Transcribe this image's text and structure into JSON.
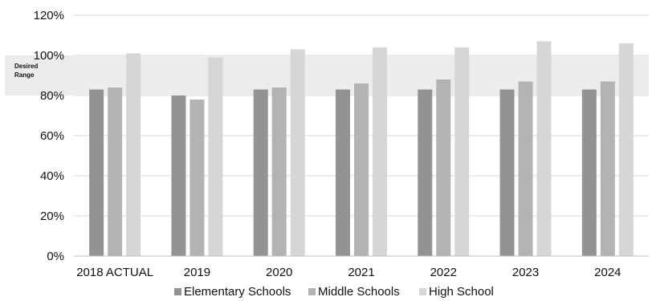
{
  "chart_data": {
    "type": "bar",
    "categories": [
      "2018 ACTUAL",
      "2019",
      "2020",
      "2021",
      "2022",
      "2023",
      "2024"
    ],
    "series": [
      {
        "name": "Elementary Schools",
        "values": [
          83,
          80,
          83,
          83,
          83,
          83,
          83
        ],
        "color": "#939393"
      },
      {
        "name": "Middle Schools",
        "values": [
          84,
          78,
          84,
          86,
          88,
          87,
          87
        ],
        "color": "#b3b3b3"
      },
      {
        "name": "High School",
        "values": [
          101,
          99,
          103,
          104,
          104,
          107,
          106
        ],
        "color": "#d6d6d6"
      }
    ],
    "ylim": [
      0,
      120
    ],
    "yticks": [
      0,
      20,
      40,
      60,
      80,
      100,
      120
    ],
    "ytick_labels": [
      "0%",
      "20%",
      "40%",
      "60%",
      "80%",
      "100%",
      "120%"
    ],
    "grid": true,
    "legend_position": "bottom",
    "annotation": {
      "text_line1": "Desired",
      "text_line2": "Range",
      "range": [
        80,
        100
      ],
      "color": "#ececec"
    }
  }
}
